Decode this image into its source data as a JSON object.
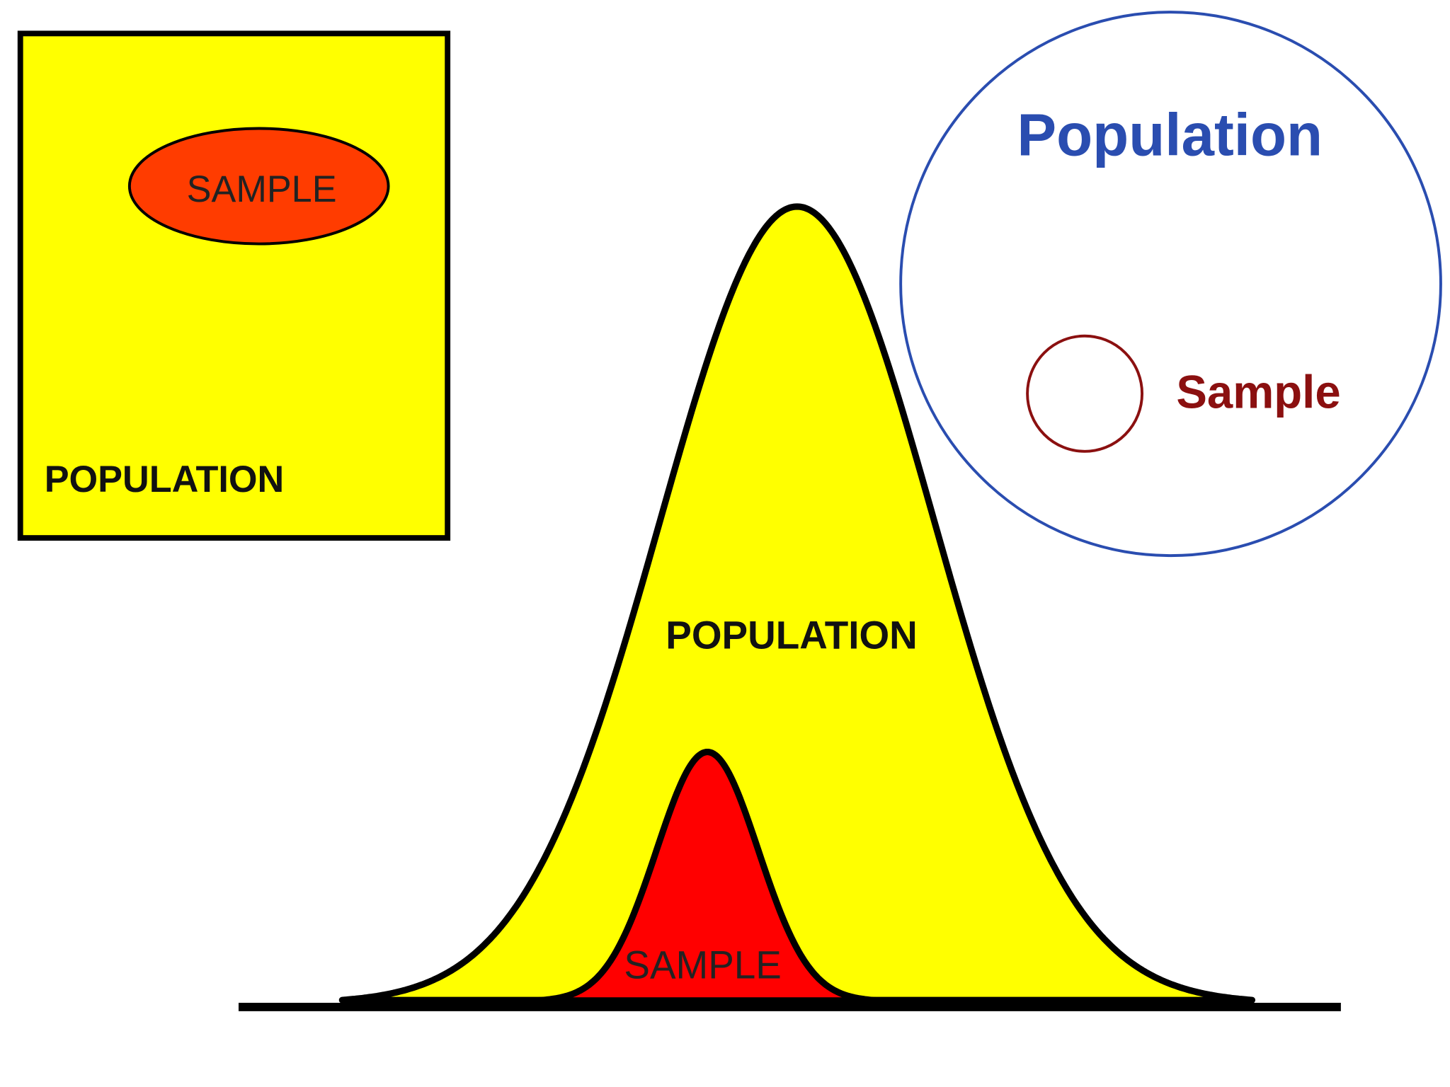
{
  "box_diagram": {
    "sample_label": "SAMPLE",
    "population_label": "POPULATION"
  },
  "bell_diagram": {
    "population_label": "POPULATION",
    "sample_label": "SAMPLE"
  },
  "circle_diagram": {
    "population_label": "Population",
    "sample_label": "Sample"
  }
}
